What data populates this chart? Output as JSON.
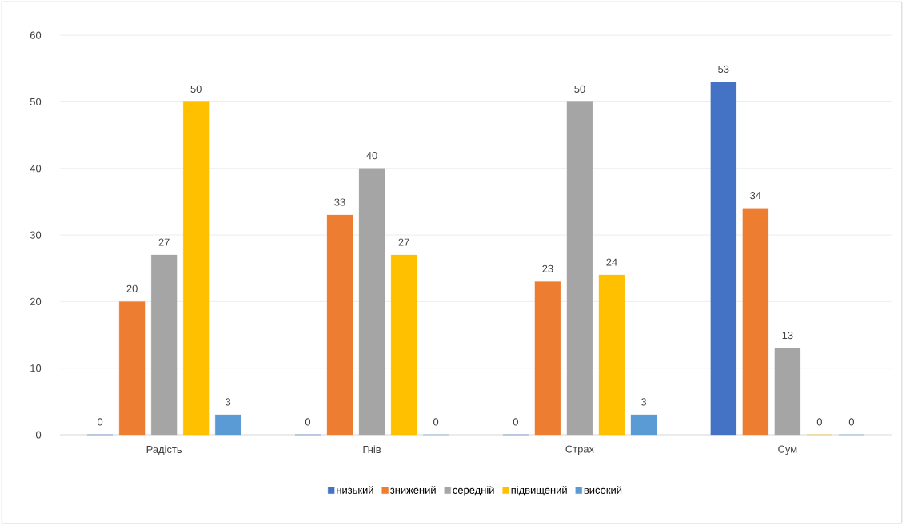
{
  "chart_data": {
    "type": "bar",
    "categories": [
      "Радість",
      "Гнів",
      "Страх",
      "Сум"
    ],
    "series": [
      {
        "name": "низький",
        "color": "#4472c4",
        "values": [
          0,
          0,
          0,
          53
        ]
      },
      {
        "name": "знижений",
        "color": "#ed7d31",
        "values": [
          20,
          33,
          23,
          34
        ]
      },
      {
        "name": "середній",
        "color": "#a5a5a5",
        "values": [
          27,
          40,
          50,
          13
        ]
      },
      {
        "name": "підвищений",
        "color": "#ffc000",
        "values": [
          50,
          27,
          24,
          0
        ]
      },
      {
        "name": "високий",
        "color": "#5b9bd5",
        "values": [
          3,
          0,
          3,
          0
        ]
      }
    ],
    "ylim": [
      0,
      60
    ],
    "yticks": [
      0,
      10,
      20,
      30,
      40,
      50,
      60
    ],
    "grid": "y",
    "legend": "bottom",
    "data_labels": true
  }
}
